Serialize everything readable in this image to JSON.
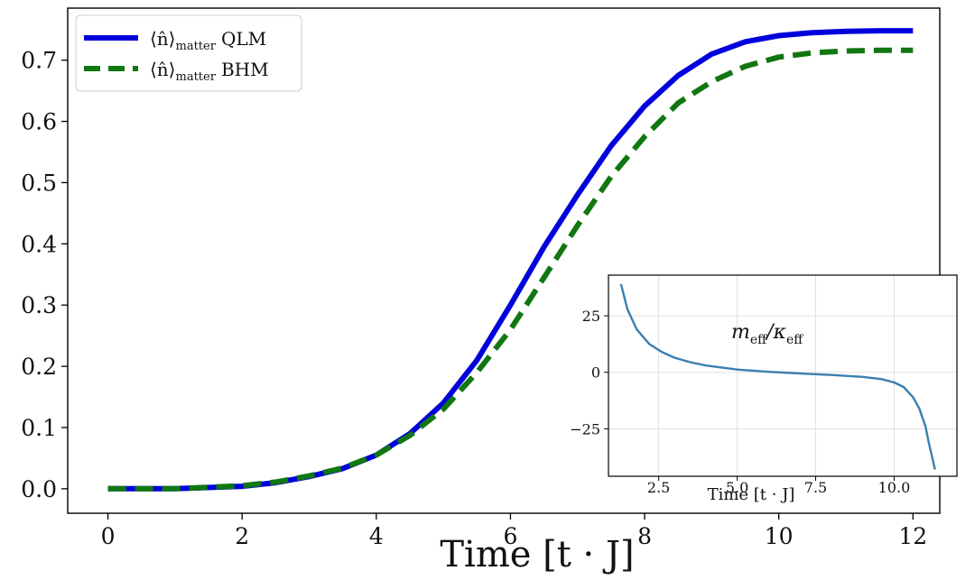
{
  "chart_data": [
    {
      "type": "line",
      "title": "",
      "xlabel": "Time [t · J]",
      "ylabel": "",
      "xlim": [
        -0.6,
        12.4
      ],
      "ylim": [
        -0.04,
        0.785
      ],
      "x_ticks": [
        0,
        2,
        4,
        6,
        8,
        10,
        12
      ],
      "x_tick_labels": [
        "0",
        "2",
        "4",
        "6",
        "8",
        "10",
        "12"
      ],
      "y_ticks": [
        0.0,
        0.1,
        0.2,
        0.3,
        0.4,
        0.5,
        0.6,
        0.7
      ],
      "y_tick_labels": [
        "0.0",
        "0.1",
        "0.2",
        "0.3",
        "0.4",
        "0.5",
        "0.6",
        "0.7"
      ],
      "grid": false,
      "legend_position": "top-left",
      "series": [
        {
          "name": "⟨n̂⟩matter QLM",
          "legend_main": "⟨n̂⟩",
          "legend_sub": "matter",
          "legend_suffix": "QLM",
          "color": "#0000dd",
          "style": "solid",
          "x": [
            0,
            1,
            2,
            2.5,
            3,
            3.5,
            4,
            4.5,
            5,
            5.5,
            6,
            6.5,
            7,
            7.5,
            8,
            8.5,
            9,
            9.5,
            10,
            10.5,
            11,
            11.5,
            12
          ],
          "y": [
            0.0,
            0.0,
            0.004,
            0.01,
            0.02,
            0.033,
            0.055,
            0.09,
            0.14,
            0.21,
            0.3,
            0.395,
            0.48,
            0.56,
            0.625,
            0.675,
            0.71,
            0.73,
            0.74,
            0.745,
            0.747,
            0.748,
            0.748
          ]
        },
        {
          "name": "⟨n̂⟩matter BHM",
          "legend_main": "⟨n̂⟩",
          "legend_sub": "matter",
          "legend_suffix": "BHM",
          "color": "#117711",
          "style": "dashed",
          "x": [
            0,
            1,
            2,
            2.5,
            3,
            3.5,
            4,
            4.5,
            5,
            5.5,
            6,
            6.5,
            7,
            7.5,
            8,
            8.5,
            9,
            9.5,
            10,
            10.5,
            11,
            11.5,
            12
          ],
          "y": [
            0.0,
            0.0,
            0.005,
            0.011,
            0.021,
            0.034,
            0.055,
            0.087,
            0.13,
            0.19,
            0.26,
            0.345,
            0.43,
            0.51,
            0.575,
            0.63,
            0.665,
            0.69,
            0.705,
            0.712,
            0.715,
            0.716,
            0.716
          ]
        }
      ]
    },
    {
      "type": "line",
      "title": "",
      "annotation": "m_eff / κ_eff",
      "annotation_main_1": "m",
      "annotation_sub_1": "eff",
      "annotation_main_2": "/κ",
      "annotation_sub_2": "eff",
      "xlabel": "Time [t · J]",
      "ylabel": "",
      "xlim": [
        0.9,
        12.0
      ],
      "ylim": [
        -46,
        43
      ],
      "x_ticks": [
        2.5,
        5.0,
        7.5,
        10.0
      ],
      "x_tick_labels": [
        "2.5",
        "5.0",
        "7.5",
        "10.0"
      ],
      "y_ticks": [
        25,
        0,
        -25
      ],
      "y_tick_labels": [
        "25",
        "0",
        "−25"
      ],
      "grid": true,
      "series": [
        {
          "color": "#3a7fb0",
          "style": "solid",
          "x": [
            1.3,
            1.5,
            1.8,
            2.2,
            2.6,
            3.0,
            3.5,
            4.0,
            5.0,
            6.0,
            7.0,
            8.0,
            9.0,
            9.6,
            10.0,
            10.3,
            10.6,
            10.8,
            11.0,
            11.1,
            11.2,
            11.3
          ],
          "y": [
            39,
            28,
            19,
            12.5,
            9,
            6.5,
            4.5,
            3,
            1.2,
            0.2,
            -0.5,
            -1.2,
            -2,
            -3,
            -4.5,
            -6.5,
            -11,
            -16,
            -24,
            -31,
            -37,
            -43
          ]
        }
      ]
    }
  ]
}
